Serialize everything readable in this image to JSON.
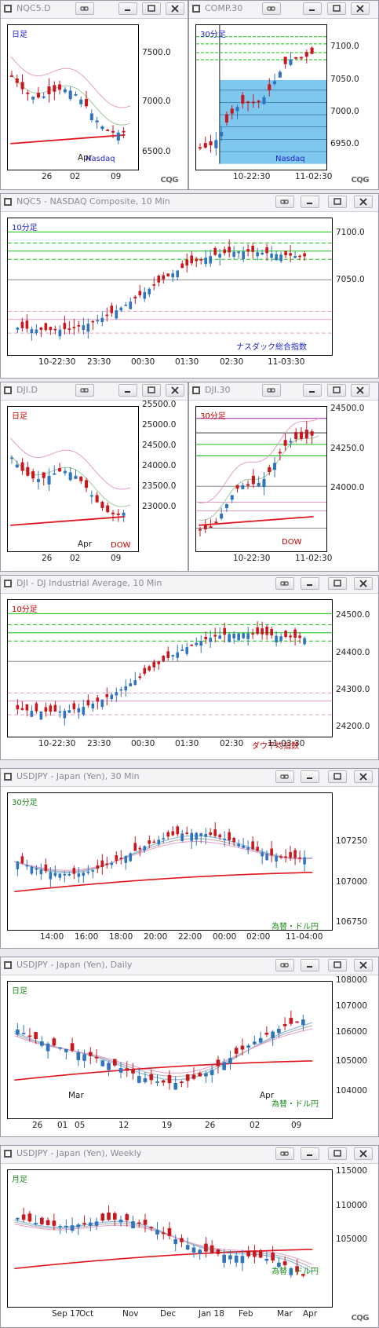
{
  "colors": {
    "up": "#2f74bd",
    "down": "#c8181e",
    "resistance": "#11c211",
    "pivot": "#1a1a1a",
    "cloud": "#7ec8ef",
    "ema_red": "#e0151d",
    "ma_pink": "#e59cc6"
  },
  "panels": [
    {
      "id": "nqc5-d",
      "title": "NQC5.D",
      "timeframe": "日足",
      "note": "Nasdaq",
      "yticks": [
        "7500.0",
        "7000.0",
        "6500.0"
      ],
      "xticks": [
        "26",
        "02",
        "09"
      ],
      "month": "Apr",
      "cqg": "CQG"
    },
    {
      "id": "comp-30",
      "title": "COMP.30",
      "timeframe": "30分足",
      "note": "Nasdaq",
      "yticks": [
        "7100.0",
        "7050.0",
        "7000.0",
        "6950.0"
      ],
      "xticks": [
        "10-22:30",
        "11-02:30"
      ],
      "cqg": "CQG"
    },
    {
      "id": "nqc5-10",
      "title": "NQC5 - NASDAQ Composite, 10 Min",
      "timeframe": "10分足",
      "note": "ナスダック総合指数",
      "yticks": [
        "7100.0",
        "7050.0"
      ],
      "xticks": [
        "10-22:30",
        "23:30",
        "00:30",
        "01:30",
        "02:30",
        "11-03:30"
      ]
    },
    {
      "id": "dji-d",
      "title": "DJI.D",
      "timeframe": "日足",
      "note": "DOW",
      "yticks": [
        "25500.0",
        "25000.0",
        "24500.0",
        "24000.0",
        "23500.0",
        "23000.0"
      ],
      "xticks": [
        "26",
        "02",
        "09"
      ],
      "month": "Apr"
    },
    {
      "id": "dji-30",
      "title": "DJI.30",
      "timeframe": "30分足",
      "note": "DOW",
      "yticks": [
        "24500.0",
        "24250.0",
        "24000.0"
      ],
      "xticks": [
        "10-22:30",
        "11-02:30"
      ]
    },
    {
      "id": "dji-10",
      "title": "DJI - DJ Industrial Average, 10 Min",
      "timeframe": "10分足",
      "note": "ダウ平均指数",
      "yticks": [
        "24500.0",
        "24400.0",
        "24300.0",
        "24200.0"
      ],
      "xticks": [
        "10-22:30",
        "23:30",
        "00:30",
        "01:30",
        "02:30",
        "11-03:30"
      ]
    },
    {
      "id": "usdjpy-30",
      "title": "USDJPY - Japan (Yen), 30 Min",
      "timeframe": "30分足",
      "note": "為替・ドル円",
      "yticks": [
        "107250",
        "107000",
        "106750"
      ],
      "xticks": [
        "14:00",
        "16:00",
        "18:00",
        "20:00",
        "22:00",
        "00:00",
        "02:00",
        "11-04:00"
      ]
    },
    {
      "id": "usdjpy-d",
      "title": "USDJPY - Japan (Yen), Daily",
      "timeframe": "日足",
      "note": "為替・ドル円",
      "yticks": [
        "108000",
        "107000",
        "106000",
        "105000",
        "104000"
      ],
      "xticks": [
        "26",
        "01",
        "05",
        "12",
        "19",
        "26",
        "02",
        "09"
      ],
      "months": [
        "Mar",
        "Apr"
      ]
    },
    {
      "id": "usdjpy-w",
      "title": "USDJPY - Japan (Yen), Weekly",
      "timeframe": "月足",
      "note": "為替・ドル円",
      "yticks": [
        "115000",
        "110000",
        "105000"
      ],
      "xticks": [
        "Sep 17",
        "Oct",
        "Nov",
        "Dec",
        "Jan 18",
        "Feb",
        "Mar",
        "Apr"
      ],
      "cqg": "CQG"
    }
  ]
}
